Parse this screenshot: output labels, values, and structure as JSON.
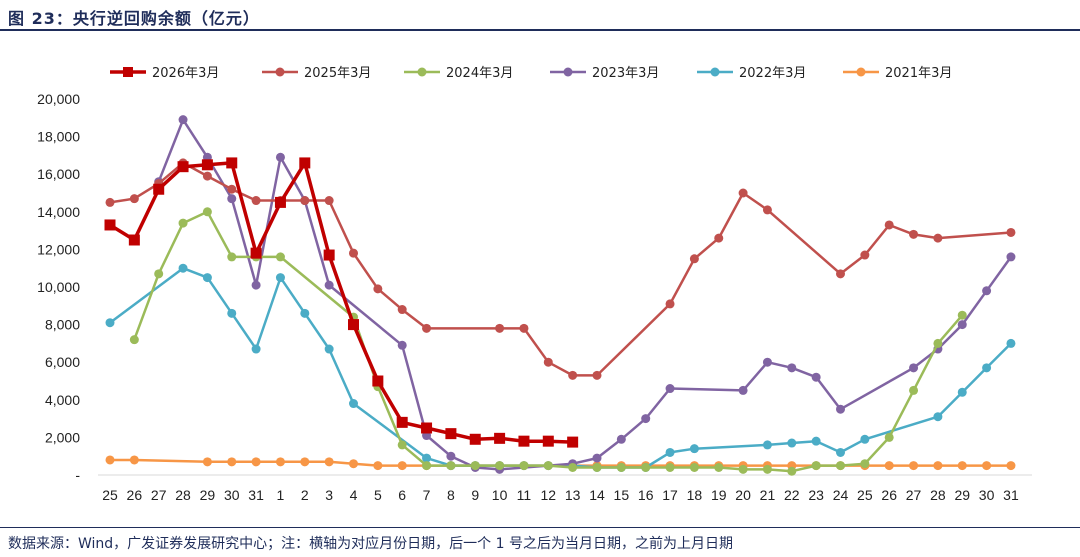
{
  "header": {
    "title": "图 23：央行逆回购余额（亿元）"
  },
  "footer": {
    "note": "数据来源：Wind，广发证券发展研究中心；注：横轴为对应月份日期，后一个 1 号之后为当月日期，之前为上月日期"
  },
  "chart_data": {
    "type": "line",
    "categories": [
      "25",
      "26",
      "27",
      "28",
      "29",
      "30",
      "31",
      "1",
      "2",
      "3",
      "4",
      "5",
      "6",
      "7",
      "8",
      "9",
      "10",
      "11",
      "12",
      "13",
      "14",
      "15",
      "16",
      "17",
      "18",
      "19",
      "20",
      "21",
      "22",
      "23",
      "24",
      "25",
      "26",
      "27",
      "28",
      "29",
      "30",
      "31"
    ],
    "ylim": [
      0,
      20000
    ],
    "yticks": [
      0,
      2000,
      4000,
      6000,
      8000,
      10000,
      12000,
      14000,
      16000,
      18000,
      20000
    ],
    "ytick_labels": [
      "-",
      "2,000",
      "4,000",
      "6,000",
      "8,000",
      "10,000",
      "12,000",
      "14,000",
      "16,000",
      "18,000",
      "20,000"
    ],
    "legend_position": "top",
    "grid": false,
    "series": [
      {
        "name": "2026年3月",
        "color": "#c00000",
        "marker": "square",
        "width": 3.5,
        "values": [
          13300,
          12500,
          15200,
          16400,
          16500,
          16600,
          11800,
          14500,
          16600,
          11700,
          8000,
          5000,
          2800,
          2500,
          2200,
          1900,
          1950,
          1800,
          1800,
          1750,
          null,
          null,
          null,
          null,
          null,
          null,
          null,
          null,
          null,
          null,
          null,
          null,
          null,
          null,
          null,
          null,
          null,
          null
        ]
      },
      {
        "name": "2025年3月",
        "color": "#c0504d",
        "marker": "circle",
        "width": 2.5,
        "values": [
          14500,
          14700,
          15500,
          16600,
          15900,
          15200,
          14600,
          14600,
          14600,
          14600,
          11800,
          9900,
          8800,
          7800,
          null,
          null,
          7800,
          7800,
          6000,
          5300,
          5300,
          null,
          null,
          9100,
          11500,
          12600,
          15000,
          14100,
          null,
          null,
          10700,
          11700,
          13300,
          12800,
          12600,
          null,
          null,
          12900
        ]
      },
      {
        "name": "2024年3月",
        "color": "#9bbb59",
        "marker": "circle",
        "width": 2.5,
        "values": [
          null,
          7200,
          10700,
          13400,
          14000,
          11600,
          11600,
          11600,
          null,
          null,
          8400,
          4700,
          1600,
          500,
          500,
          500,
          500,
          500,
          500,
          400,
          400,
          400,
          400,
          400,
          400,
          400,
          300,
          300,
          200,
          500,
          500,
          600,
          2000,
          4500,
          7000,
          8500,
          null,
          null
        ]
      },
      {
        "name": "2023年3月",
        "color": "#8064a2",
        "marker": "circle",
        "width": 2.5,
        "values": [
          null,
          null,
          15600,
          18900,
          16900,
          14700,
          10100,
          16900,
          14600,
          10100,
          null,
          null,
          6900,
          2100,
          1000,
          400,
          300,
          null,
          null,
          600,
          900,
          1900,
          3000,
          4600,
          null,
          null,
          4500,
          6000,
          5700,
          5200,
          3500,
          null,
          null,
          5700,
          6700,
          8000,
          9800,
          11600
        ]
      },
      {
        "name": "2022年3月",
        "color": "#4bacc6",
        "marker": "circle",
        "width": 2.5,
        "values": [
          8100,
          null,
          null,
          11000,
          10500,
          8600,
          6700,
          10500,
          8600,
          6700,
          3800,
          null,
          null,
          900,
          500,
          500,
          500,
          500,
          500,
          500,
          400,
          400,
          400,
          1200,
          1400,
          null,
          null,
          1600,
          1700,
          1800,
          1200,
          1900,
          null,
          null,
          3100,
          4400,
          5700,
          7000
        ]
      },
      {
        "name": "2021年3月",
        "color": "#f79646",
        "marker": "circle",
        "width": 2.5,
        "values": [
          800,
          800,
          null,
          null,
          700,
          700,
          700,
          700,
          700,
          700,
          600,
          500,
          500,
          500,
          500,
          500,
          500,
          500,
          500,
          500,
          500,
          500,
          500,
          500,
          500,
          500,
          500,
          500,
          500,
          500,
          500,
          500,
          500,
          500,
          500,
          500,
          500,
          500
        ]
      }
    ]
  }
}
